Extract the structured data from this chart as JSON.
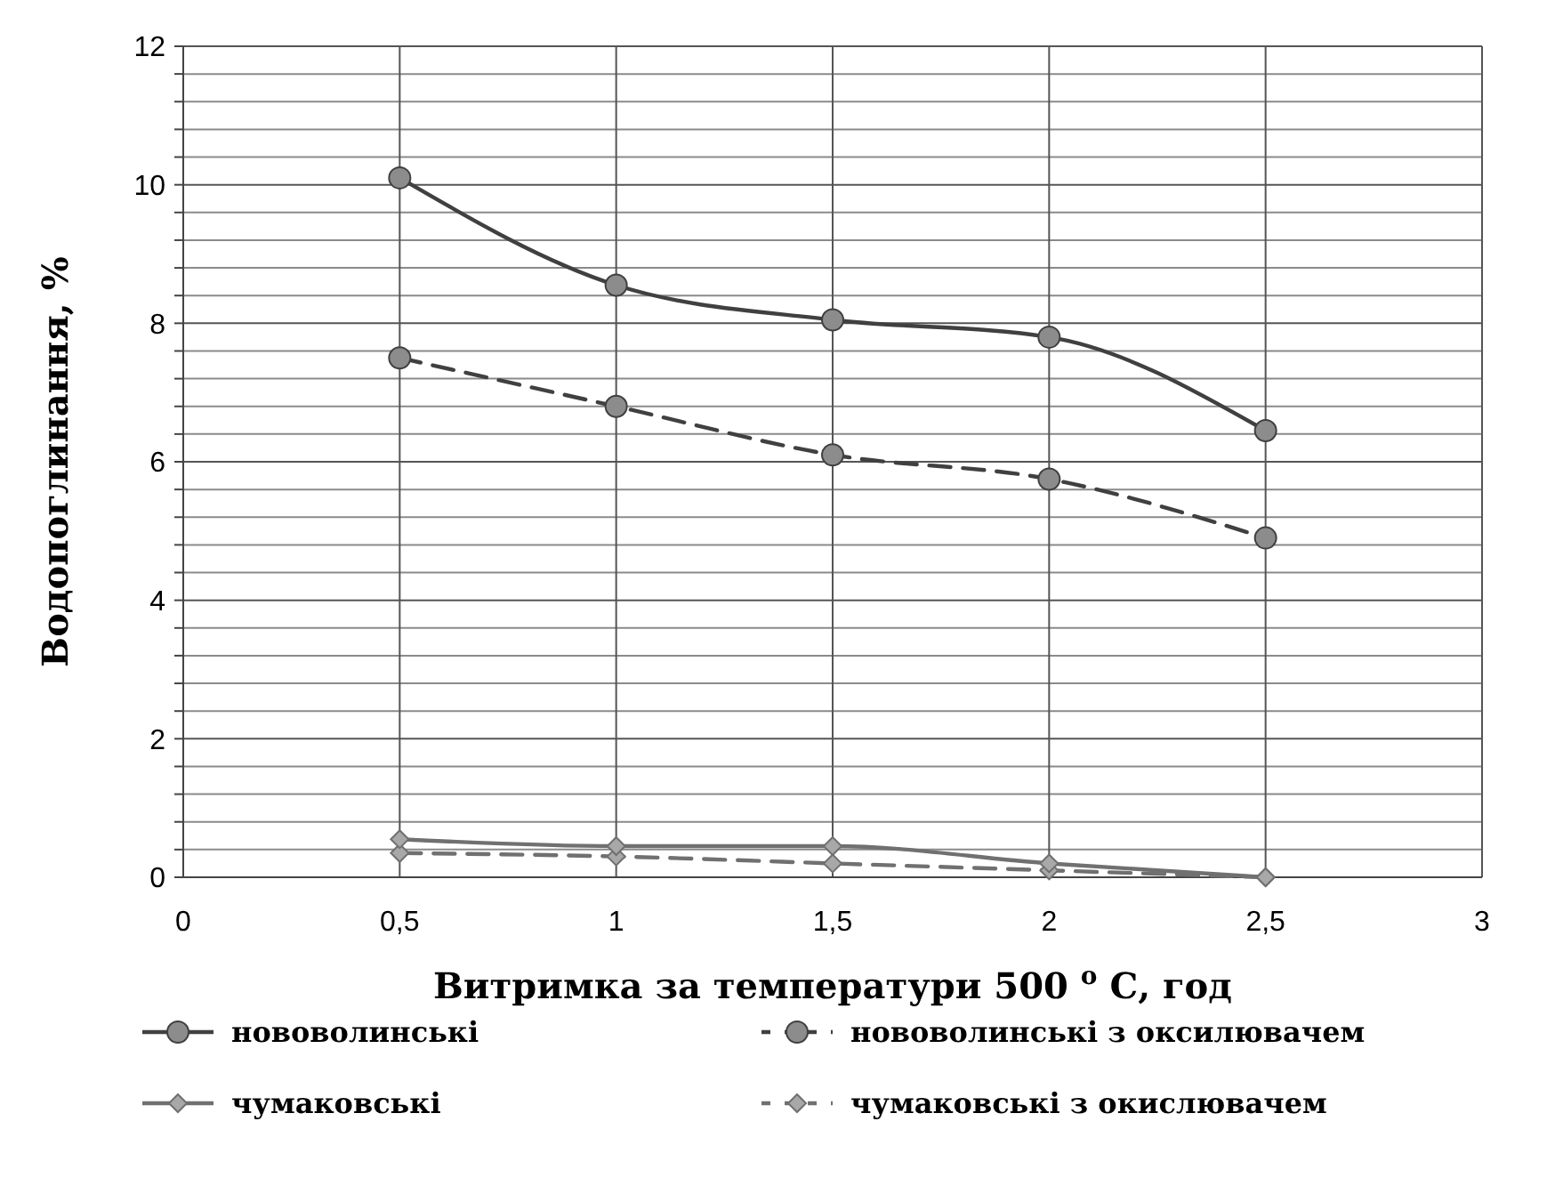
{
  "chart_data": {
    "type": "line",
    "xlabel": "Витримка за температури 500 $^{o}$ С, год",
    "ylabel": "Водопоглинання, %",
    "x": [
      0.5,
      1,
      1.5,
      2,
      2.5
    ],
    "xlim": [
      0,
      3
    ],
    "xticks": [
      {
        "value": 0,
        "label": "0"
      },
      {
        "value": 0.5,
        "label": "0,5"
      },
      {
        "value": 1,
        "label": "1"
      },
      {
        "value": 1.5,
        "label": "1,5"
      },
      {
        "value": 2,
        "label": "2"
      },
      {
        "value": 2.5,
        "label": "2,5"
      },
      {
        "value": 3,
        "label": "3"
      }
    ],
    "ylim": [
      0,
      12
    ],
    "yticks": [
      0,
      {
        "value": 0.4,
        "label": null
      },
      {
        "value": 0.8,
        "label": null
      },
      {
        "value": 1.2,
        "label": null
      },
      {
        "value": 1.6,
        "label": null
      },
      2,
      {
        "value": 2.4,
        "label": null
      },
      {
        "value": 2.8,
        "label": null
      },
      {
        "value": 3.2,
        "label": null
      },
      {
        "value": 3.6,
        "label": null
      },
      4,
      {
        "value": 4.4,
        "label": null
      },
      {
        "value": 4.8,
        "label": null
      },
      {
        "value": 5.2,
        "label": null
      },
      {
        "value": 5.6,
        "label": null
      },
      6,
      {
        "value": 6.4,
        "label": null
      },
      {
        "value": 6.8,
        "label": null
      },
      {
        "value": 7.2,
        "label": null
      },
      {
        "value": 7.6,
        "label": null
      },
      8,
      {
        "value": 8.4,
        "label": null
      },
      {
        "value": 8.8,
        "label": null
      },
      {
        "value": 9.2,
        "label": null
      },
      {
        "value": 9.6,
        "label": null
      },
      10,
      {
        "value": 10.4,
        "label": null
      },
      {
        "value": 10.8,
        "label": null
      },
      {
        "value": 11.2,
        "label": null
      },
      {
        "value": 11.6,
        "label": null
      },
      12
    ],
    "grid": true,
    "legend": "bottom",
    "series": [
      {
        "name": "нововолинські",
        "color": "#404040",
        "marker": "circle",
        "line_style": "solid",
        "values": [
          10.1,
          8.55,
          8.05,
          7.8,
          6.45
        ]
      },
      {
        "name": "нововолинські з оксилювачем",
        "color": "#404040",
        "marker": "circle",
        "line_style": "dashed",
        "values": [
          7.5,
          6.8,
          6.1,
          5.75,
          4.9
        ]
      },
      {
        "name": "чумаковські",
        "color": "#707070",
        "marker": "diamond",
        "line_style": "solid",
        "values": [
          0.55,
          0.45,
          0.45,
          0.2,
          0
        ]
      },
      {
        "name": "чумаковські з  окислювачем",
        "color": "#707070",
        "marker": "diamond",
        "line_style": "dashed",
        "values": [
          0.35,
          0.3,
          0.2,
          0.1,
          0
        ]
      }
    ]
  }
}
